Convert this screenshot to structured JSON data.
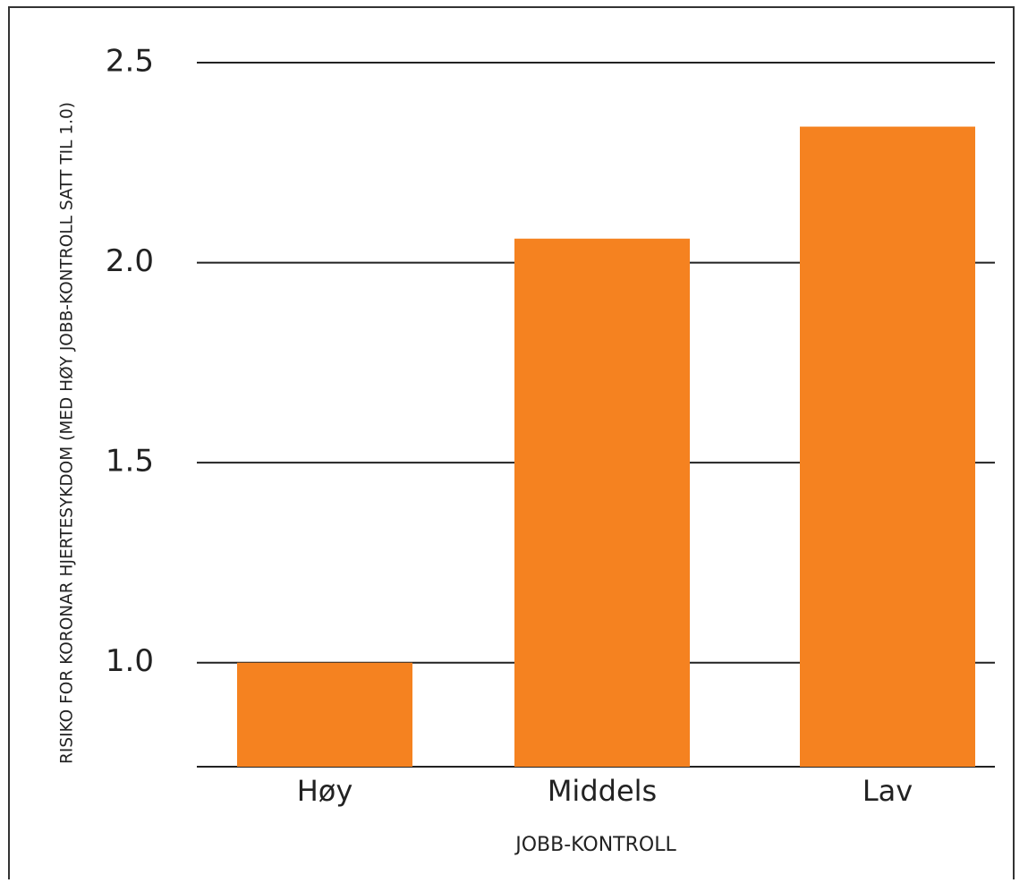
{
  "chart_data": {
    "type": "bar",
    "y_label": "RISIKO FOR KORONAR HJERTESYKDOM (MED HØY JOBB-KONTROLL SATT TIL 1.0)",
    "x_label": "JOBB-KONTROLL",
    "categories": [
      "Høy",
      "Middels",
      "Lav"
    ],
    "values": [
      1.0,
      2.06,
      2.34
    ],
    "color": "#f58220",
    "ylim": [
      0.74,
      2.5
    ],
    "yticks": [
      {
        "value": 1,
        "label": "1.0"
      },
      1.5,
      {
        "value": 2,
        "label": "2.0"
      },
      2.5
    ],
    "grid": true
  }
}
